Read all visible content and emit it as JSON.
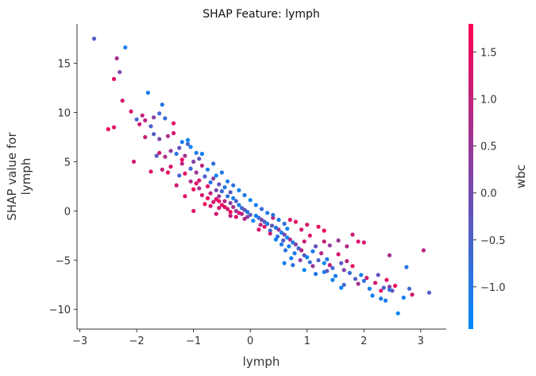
{
  "chart_data": {
    "type": "scatter",
    "title": "SHAP Feature: lymph",
    "xlabel": "lymph",
    "ylabel_lines": [
      "SHAP value for",
      "lymph"
    ],
    "xlim": [
      -3.05,
      3.45
    ],
    "ylim": [
      -12,
      19
    ],
    "xticks": [
      -3,
      -2,
      -1,
      0,
      1,
      2,
      3
    ],
    "yticks": [
      -10,
      -5,
      0,
      5,
      10,
      15
    ],
    "colorbar": {
      "label": "wbc",
      "range": [
        -1.45,
        1.8
      ],
      "ticks": [
        -1.0,
        -0.5,
        0.0,
        0.5,
        1.0,
        1.5
      ],
      "tick_labels": [
        "−1.0",
        "−0.5",
        "0.0",
        "0.5",
        "1.0",
        "1.5"
      ],
      "colors": [
        "#008afb",
        "#ff0052"
      ]
    },
    "points": [
      {
        "x": -2.75,
        "y": 17.5,
        "c": -0.4
      },
      {
        "x": -2.2,
        "y": 16.6,
        "c": -1.2
      },
      {
        "x": -2.35,
        "y": 15.5,
        "c": 0.6
      },
      {
        "x": -2.3,
        "y": 14.1,
        "c": 0.2
      },
      {
        "x": -2.4,
        "y": 13.4,
        "c": 1.5
      },
      {
        "x": -2.25,
        "y": 11.2,
        "c": 1.2
      },
      {
        "x": -1.8,
        "y": 12.0,
        "c": -1.2
      },
      {
        "x": -1.55,
        "y": 10.8,
        "c": -1.0
      },
      {
        "x": -1.6,
        "y": 9.9,
        "c": -0.7
      },
      {
        "x": -2.1,
        "y": 10.1,
        "c": 1.3
      },
      {
        "x": -1.9,
        "y": 9.7,
        "c": 1.0
      },
      {
        "x": -2.0,
        "y": 9.3,
        "c": -0.6
      },
      {
        "x": -1.85,
        "y": 9.2,
        "c": 0.9
      },
      {
        "x": -1.95,
        "y": 8.8,
        "c": 1.2
      },
      {
        "x": -1.75,
        "y": 8.6,
        "c": -0.5
      },
      {
        "x": -1.7,
        "y": 9.5,
        "c": 0.3
      },
      {
        "x": -1.5,
        "y": 9.4,
        "c": -0.8
      },
      {
        "x": -1.35,
        "y": 8.9,
        "c": 1.4
      },
      {
        "x": -2.5,
        "y": 8.3,
        "c": 1.6
      },
      {
        "x": -2.4,
        "y": 8.5,
        "c": 1.4
      },
      {
        "x": -1.85,
        "y": 7.5,
        "c": 1.1
      },
      {
        "x": -1.7,
        "y": 7.8,
        "c": -0.4
      },
      {
        "x": -1.6,
        "y": 7.3,
        "c": 0.1
      },
      {
        "x": -1.45,
        "y": 7.6,
        "c": 0.7
      },
      {
        "x": -1.2,
        "y": 7.0,
        "c": -1.1
      },
      {
        "x": -1.1,
        "y": 6.8,
        "c": -0.6
      },
      {
        "x": -1.05,
        "y": 6.5,
        "c": -1.2
      },
      {
        "x": -1.25,
        "y": 6.4,
        "c": -0.2
      },
      {
        "x": -1.4,
        "y": 6.1,
        "c": 0.4
      },
      {
        "x": -1.3,
        "y": 5.8,
        "c": -0.9
      },
      {
        "x": -1.5,
        "y": 5.5,
        "c": 0.8
      },
      {
        "x": -1.6,
        "y": 5.9,
        "c": 1.2
      },
      {
        "x": -1.15,
        "y": 5.6,
        "c": 0.6
      },
      {
        "x": -0.95,
        "y": 5.9,
        "c": -1.0
      },
      {
        "x": -0.9,
        "y": 5.3,
        "c": -0.3
      },
      {
        "x": -1.0,
        "y": 5.0,
        "c": 0.2
      },
      {
        "x": -1.2,
        "y": 4.8,
        "c": 1.0
      },
      {
        "x": -1.4,
        "y": 4.5,
        "c": 1.3
      },
      {
        "x": -1.05,
        "y": 4.3,
        "c": -0.7
      },
      {
        "x": -0.85,
        "y": 4.6,
        "c": 0.9
      },
      {
        "x": -0.75,
        "y": 4.2,
        "c": -1.1
      },
      {
        "x": -0.95,
        "y": 3.9,
        "c": 0.5
      },
      {
        "x": -1.15,
        "y": 3.8,
        "c": 1.5
      },
      {
        "x": -1.75,
        "y": 4.0,
        "c": 1.4
      },
      {
        "x": -2.05,
        "y": 5.0,
        "c": 1.2
      },
      {
        "x": -1.55,
        "y": 4.2,
        "c": 1.1
      },
      {
        "x": -0.8,
        "y": 3.5,
        "c": -0.5
      },
      {
        "x": -0.65,
        "y": 3.3,
        "c": 0.3
      },
      {
        "x": -0.9,
        "y": 3.1,
        "c": 1.2
      },
      {
        "x": -1.05,
        "y": 3.0,
        "c": 0.8
      },
      {
        "x": -0.7,
        "y": 2.9,
        "c": -0.9
      },
      {
        "x": -0.55,
        "y": 2.7,
        "c": -0.2
      },
      {
        "x": -0.75,
        "y": 2.5,
        "c": 1.4
      },
      {
        "x": -0.9,
        "y": 2.3,
        "c": 0.6
      },
      {
        "x": -1.0,
        "y": 2.2,
        "c": 1.6
      },
      {
        "x": -0.6,
        "y": 2.1,
        "c": 0.0
      },
      {
        "x": -0.45,
        "y": 2.4,
        "c": -1.0
      },
      {
        "x": -0.5,
        "y": 2.0,
        "c": -0.6
      },
      {
        "x": -0.35,
        "y": 1.9,
        "c": -0.3
      },
      {
        "x": -0.7,
        "y": 1.8,
        "c": 1.0
      },
      {
        "x": -0.85,
        "y": 1.6,
        "c": 1.3
      },
      {
        "x": -0.55,
        "y": 1.5,
        "c": 0.4
      },
      {
        "x": -0.4,
        "y": 1.5,
        "c": -0.8
      },
      {
        "x": -0.3,
        "y": 1.3,
        "c": -1.2
      },
      {
        "x": -0.6,
        "y": 1.2,
        "c": 1.5
      },
      {
        "x": -0.45,
        "y": 1.0,
        "c": 0.9
      },
      {
        "x": -0.25,
        "y": 1.0,
        "c": -0.5
      },
      {
        "x": -0.65,
        "y": 0.9,
        "c": 1.2
      },
      {
        "x": -0.35,
        "y": 0.8,
        "c": 0.2
      },
      {
        "x": -0.2,
        "y": 0.6,
        "c": -1.1
      },
      {
        "x": -0.5,
        "y": 0.6,
        "c": 1.4
      },
      {
        "x": -0.3,
        "y": 0.4,
        "c": 0.7
      },
      {
        "x": -0.15,
        "y": 0.3,
        "c": -0.7
      },
      {
        "x": -0.4,
        "y": 0.2,
        "c": 1.1
      },
      {
        "x": -0.1,
        "y": 0.1,
        "c": -0.2
      },
      {
        "x": -0.25,
        "y": 0.0,
        "c": 0.5
      },
      {
        "x": -0.05,
        "y": -0.1,
        "c": -1.0
      },
      {
        "x": -0.35,
        "y": -0.1,
        "c": 1.6
      },
      {
        "x": -0.15,
        "y": -0.3,
        "c": 0.8
      },
      {
        "x": 0.0,
        "y": -0.4,
        "c": -0.4
      },
      {
        "x": 0.1,
        "y": -0.5,
        "c": -1.2
      },
      {
        "x": -0.05,
        "y": -0.6,
        "c": 0.3
      },
      {
        "x": 0.15,
        "y": -0.7,
        "c": -0.8
      },
      {
        "x": 0.2,
        "y": -0.9,
        "c": 0.1
      },
      {
        "x": 0.05,
        "y": -1.0,
        "c": -1.3
      },
      {
        "x": 0.25,
        "y": -1.1,
        "c": -0.5
      },
      {
        "x": 0.3,
        "y": -1.3,
        "c": -1.0
      },
      {
        "x": 0.18,
        "y": -1.4,
        "c": 0.9
      },
      {
        "x": 0.38,
        "y": -1.5,
        "c": -0.2
      },
      {
        "x": 0.45,
        "y": -1.7,
        "c": -1.1
      },
      {
        "x": 0.5,
        "y": -1.9,
        "c": 0.4
      },
      {
        "x": 0.35,
        "y": -2.0,
        "c": -0.7
      },
      {
        "x": 0.55,
        "y": -2.2,
        "c": -1.2
      },
      {
        "x": 0.6,
        "y": -2.4,
        "c": 0.0
      },
      {
        "x": 0.48,
        "y": -2.6,
        "c": -0.9
      },
      {
        "x": 0.65,
        "y": -2.7,
        "c": -1.3
      },
      {
        "x": 0.7,
        "y": -2.9,
        "c": 0.6
      },
      {
        "x": 0.58,
        "y": -3.0,
        "c": -0.4
      },
      {
        "x": 0.75,
        "y": -3.2,
        "c": -1.0
      },
      {
        "x": 0.8,
        "y": -3.4,
        "c": 0.2
      },
      {
        "x": 0.68,
        "y": -3.6,
        "c": -1.2
      },
      {
        "x": 0.85,
        "y": -3.8,
        "c": -0.6
      },
      {
        "x": 0.9,
        "y": -4.0,
        "c": 0.9
      },
      {
        "x": 0.78,
        "y": -4.3,
        "c": -1.1
      },
      {
        "x": 0.95,
        "y": -4.5,
        "c": -0.3
      },
      {
        "x": 1.0,
        "y": -4.7,
        "c": -1.3
      },
      {
        "x": 0.88,
        "y": -5.0,
        "c": 0.3
      },
      {
        "x": 1.05,
        "y": -5.2,
        "c": -0.8
      },
      {
        "x": 0.6,
        "y": -5.3,
        "c": -1.2
      },
      {
        "x": 0.75,
        "y": -5.5,
        "c": -0.9
      },
      {
        "x": 1.1,
        "y": -5.6,
        "c": 0.5
      },
      {
        "x": 1.2,
        "y": -5.0,
        "c": -0.5
      },
      {
        "x": 1.25,
        "y": -4.3,
        "c": 0.8
      },
      {
        "x": 1.15,
        "y": -3.6,
        "c": -0.2
      },
      {
        "x": 1.3,
        "y": -3.1,
        "c": 1.1
      },
      {
        "x": 1.05,
        "y": -2.5,
        "c": 1.4
      },
      {
        "x": 0.9,
        "y": -1.9,
        "c": 1.2
      },
      {
        "x": 1.4,
        "y": -3.5,
        "c": 0.4
      },
      {
        "x": 1.35,
        "y": -4.9,
        "c": -1.0
      },
      {
        "x": 1.45,
        "y": -5.8,
        "c": -0.6
      },
      {
        "x": 1.3,
        "y": -6.2,
        "c": -1.2
      },
      {
        "x": 1.55,
        "y": -4.4,
        "c": 1.3
      },
      {
        "x": 1.6,
        "y": -5.3,
        "c": -0.3
      },
      {
        "x": 1.65,
        "y": -6.0,
        "c": 0.2
      },
      {
        "x": 1.5,
        "y": -6.6,
        "c": -1.1
      },
      {
        "x": 1.7,
        "y": -5.1,
        "c": 0.9
      },
      {
        "x": 1.75,
        "y": -6.3,
        "c": -0.7
      },
      {
        "x": 1.8,
        "y": -5.6,
        "c": 1.5
      },
      {
        "x": 1.85,
        "y": -6.9,
        "c": -0.4
      },
      {
        "x": 1.9,
        "y": -7.4,
        "c": 0.6
      },
      {
        "x": 1.95,
        "y": -6.5,
        "c": -1.2
      },
      {
        "x": 2.0,
        "y": -7.1,
        "c": -0.9
      },
      {
        "x": 1.65,
        "y": -7.5,
        "c": -0.6
      },
      {
        "x": 1.6,
        "y": -7.8,
        "c": -1.3
      },
      {
        "x": 2.1,
        "y": -7.9,
        "c": -1.1
      },
      {
        "x": 2.2,
        "y": -7.3,
        "c": 1.2
      },
      {
        "x": 2.25,
        "y": -6.5,
        "c": -0.2
      },
      {
        "x": 2.15,
        "y": -8.6,
        "c": -1.2
      },
      {
        "x": 2.35,
        "y": -7.8,
        "c": -0.5
      },
      {
        "x": 2.4,
        "y": -7.0,
        "c": 1.4
      },
      {
        "x": 2.45,
        "y": -7.7,
        "c": 0.2
      },
      {
        "x": 2.5,
        "y": -8.1,
        "c": -0.3
      },
      {
        "x": 2.3,
        "y": -8.9,
        "c": -1.1
      },
      {
        "x": 2.38,
        "y": -9.1,
        "c": -1.2
      },
      {
        "x": 2.55,
        "y": -7.6,
        "c": 1.5
      },
      {
        "x": 2.45,
        "y": -8.0,
        "c": -0.8
      },
      {
        "x": 2.6,
        "y": -10.4,
        "c": -1.3
      },
      {
        "x": 2.75,
        "y": -5.7,
        "c": -1.0
      },
      {
        "x": 2.7,
        "y": -8.8,
        "c": -1.2
      },
      {
        "x": 2.85,
        "y": -8.5,
        "c": 1.3
      },
      {
        "x": 2.8,
        "y": -7.9,
        "c": -0.6
      },
      {
        "x": 2.45,
        "y": -4.5,
        "c": 0.7
      },
      {
        "x": 3.05,
        "y": -4.0,
        "c": 0.9
      },
      {
        "x": 3.15,
        "y": -8.3,
        "c": -0.4
      },
      {
        "x": 1.9,
        "y": -3.1,
        "c": 1.4
      },
      {
        "x": 2.0,
        "y": -3.2,
        "c": 1.3
      },
      {
        "x": 1.8,
        "y": -2.4,
        "c": 1.1
      },
      {
        "x": 1.7,
        "y": -3.6,
        "c": 0.8
      },
      {
        "x": 1.55,
        "y": -3.0,
        "c": 0.5
      },
      {
        "x": 1.3,
        "y": -2.0,
        "c": 1.6
      },
      {
        "x": 1.2,
        "y": -1.6,
        "c": 1.5
      },
      {
        "x": 1.0,
        "y": -1.4,
        "c": 1.2
      },
      {
        "x": 0.8,
        "y": -1.1,
        "c": 1.4
      },
      {
        "x": 0.7,
        "y": -0.9,
        "c": 1.3
      },
      {
        "x": 0.4,
        "y": -0.7,
        "c": 1.0
      },
      {
        "x": -0.2,
        "y": -0.2,
        "c": 1.2
      },
      {
        "x": -0.45,
        "y": 0.4,
        "c": 1.5
      },
      {
        "x": -0.55,
        "y": 0.3,
        "c": 1.1
      },
      {
        "x": -0.7,
        "y": 0.5,
        "c": 1.3
      },
      {
        "x": -0.8,
        "y": 0.7,
        "c": 1.6
      },
      {
        "x": -1.0,
        "y": 0.0,
        "c": 1.4
      },
      {
        "x": -0.6,
        "y": -0.3,
        "c": 1.2
      },
      {
        "x": -0.35,
        "y": -0.5,
        "c": 1.0
      },
      {
        "x": -0.1,
        "y": -0.8,
        "c": 0.8
      },
      {
        "x": 0.15,
        "y": -1.9,
        "c": 1.3
      },
      {
        "x": 0.35,
        "y": -2.3,
        "c": 1.1
      },
      {
        "x": -1.15,
        "y": 1.5,
        "c": 1.4
      },
      {
        "x": -1.3,
        "y": 2.6,
        "c": 1.2
      },
      {
        "x": -1.25,
        "y": 3.6,
        "c": -0.6
      },
      {
        "x": -1.45,
        "y": 3.9,
        "c": 1.5
      },
      {
        "x": -1.65,
        "y": 5.6,
        "c": -0.3
      },
      {
        "x": -1.1,
        "y": 7.2,
        "c": -1.3
      },
      {
        "x": -0.85,
        "y": 5.8,
        "c": -1.2
      },
      {
        "x": -0.65,
        "y": 4.8,
        "c": -0.8
      },
      {
        "x": -0.5,
        "y": 3.9,
        "c": -1.0
      },
      {
        "x": -0.6,
        "y": 3.6,
        "c": -1.3
      },
      {
        "x": -0.4,
        "y": 3.0,
        "c": -1.1
      },
      {
        "x": -0.3,
        "y": 2.6,
        "c": -0.9
      },
      {
        "x": -0.2,
        "y": 2.1,
        "c": -1.2
      },
      {
        "x": -0.1,
        "y": 1.6,
        "c": -1.0
      },
      {
        "x": 0.0,
        "y": 1.1,
        "c": -1.3
      },
      {
        "x": 0.1,
        "y": 0.6,
        "c": -1.2
      },
      {
        "x": 0.2,
        "y": 0.2,
        "c": -0.7
      },
      {
        "x": 0.3,
        "y": -0.2,
        "c": -1.1
      },
      {
        "x": 0.4,
        "y": -0.4,
        "c": -1.0
      },
      {
        "x": 0.5,
        "y": -0.9,
        "c": -1.2
      },
      {
        "x": 0.6,
        "y": -1.3,
        "c": -0.8
      },
      {
        "x": 0.65,
        "y": -1.8,
        "c": -1.3
      },
      {
        "x": 0.55,
        "y": -3.4,
        "c": -1.1
      },
      {
        "x": 0.45,
        "y": -2.9,
        "c": -1.3
      },
      {
        "x": 0.62,
        "y": -4.0,
        "c": -0.9
      },
      {
        "x": 0.72,
        "y": -4.8,
        "c": -1.2
      },
      {
        "x": 0.95,
        "y": -6.0,
        "c": -1.3
      },
      {
        "x": 1.15,
        "y": -6.4,
        "c": -1.0
      },
      {
        "x": 1.35,
        "y": -6.1,
        "c": -0.2
      },
      {
        "x": 1.45,
        "y": -7.0,
        "c": -1.2
      },
      {
        "x": 1.3,
        "y": -5.3,
        "c": -1.3
      },
      {
        "x": 1.1,
        "y": -4.1,
        "c": -1.0
      },
      {
        "x": -1.35,
        "y": 7.9,
        "c": 1.3
      },
      {
        "x": -1.2,
        "y": 5.2,
        "c": 1.5
      },
      {
        "x": -0.95,
        "y": 2.8,
        "c": 1.5
      },
      {
        "x": -0.75,
        "y": 1.3,
        "c": 1.6
      },
      {
        "x": -0.55,
        "y": 1.0,
        "c": 1.5
      },
      {
        "x": -0.25,
        "y": -0.6,
        "c": 1.4
      },
      {
        "x": 0.25,
        "y": -1.6,
        "c": 1.3
      },
      {
        "x": 0.95,
        "y": -3.1,
        "c": 1.1
      },
      {
        "x": 1.4,
        "y": -5.5,
        "c": 1.0
      },
      {
        "x": 2.05,
        "y": -6.8,
        "c": 1.2
      },
      {
        "x": 2.3,
        "y": -8.1,
        "c": 1.4
      }
    ]
  }
}
